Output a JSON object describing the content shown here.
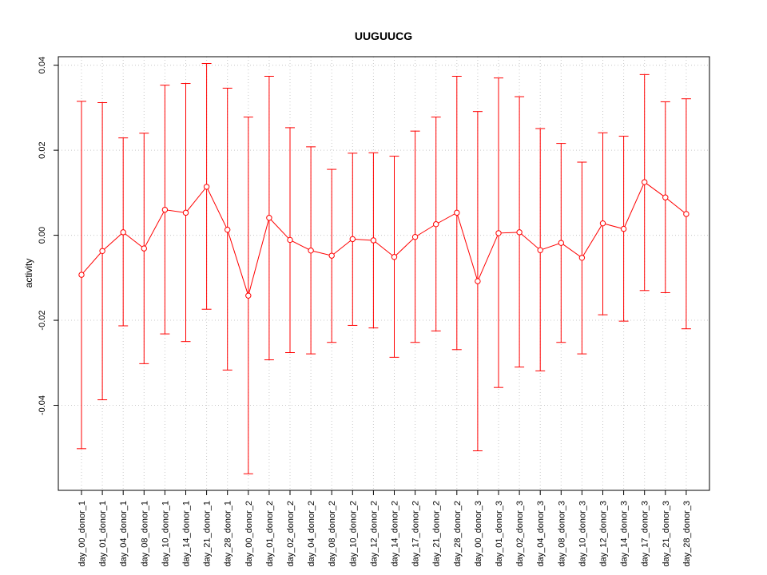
{
  "chart_data": {
    "type": "line",
    "title": "UUGUUCG",
    "xlabel": "",
    "ylabel": "activity",
    "ylim": [
      -0.06,
      0.042
    ],
    "y_ticks": [
      -0.04,
      -0.02,
      0.0,
      0.02,
      0.04
    ],
    "y_tick_labels": [
      "-0.04",
      "-0.02",
      "0.00",
      "0.02",
      "0.04"
    ],
    "grid": true,
    "error_bars": true,
    "colors": {
      "series": "#ff0000",
      "grid": "#c8c8c8",
      "axis": "#000000"
    },
    "categories": [
      "day_00_donor_1",
      "day_01_donor_1",
      "day_04_donor_1",
      "day_08_donor_1",
      "day_10_donor_1",
      "day_14_donor_1",
      "day_21_donor_1",
      "day_28_donor_1",
      "day_00_donor_2",
      "day_01_donor_2",
      "day_02_donor_2",
      "day_04_donor_2",
      "day_08_donor_2",
      "day_10_donor_2",
      "day_12_donor_2",
      "day_14_donor_2",
      "day_17_donor_2",
      "day_21_donor_2",
      "day_28_donor_2",
      "day_00_donor_3",
      "day_01_donor_3",
      "day_02_donor_3",
      "day_04_donor_3",
      "day_08_donor_3",
      "day_10_donor_3",
      "day_12_donor_3",
      "day_14_donor_3",
      "day_17_donor_3",
      "day_21_donor_3",
      "day_28_donor_3"
    ],
    "series": [
      {
        "values": [
          -0.0093,
          -0.0037,
          0.0007,
          -0.0031,
          0.006,
          0.0053,
          0.0114,
          0.0013,
          -0.0142,
          0.0041,
          -0.0011,
          -0.0036,
          -0.0048,
          -0.0009,
          -0.0012,
          -0.0051,
          -0.0004,
          0.0026,
          0.0053,
          -0.0108,
          0.0005,
          0.0007,
          -0.0035,
          -0.0018,
          -0.0053,
          0.0028,
          0.0015,
          0.0125,
          0.0089,
          0.005
        ],
        "upper": [
          0.0315,
          0.0312,
          0.0229,
          0.024,
          0.0353,
          0.0357,
          0.0404,
          0.0346,
          0.0278,
          0.0374,
          0.0253,
          0.0208,
          0.0155,
          0.0193,
          0.0194,
          0.0186,
          0.0245,
          0.0278,
          0.0374,
          0.0291,
          0.037,
          0.0326,
          0.0251,
          0.0216,
          0.0172,
          0.0241,
          0.0233,
          0.0378,
          0.0314,
          0.0321
        ],
        "lower": [
          -0.0502,
          -0.0387,
          -0.0213,
          -0.0302,
          -0.0232,
          -0.025,
          -0.0174,
          -0.0317,
          -0.0561,
          -0.0293,
          -0.0276,
          -0.0279,
          -0.0252,
          -0.0212,
          -0.0218,
          -0.0287,
          -0.0252,
          -0.0225,
          -0.0269,
          -0.0507,
          -0.0358,
          -0.031,
          -0.0319,
          -0.0252,
          -0.0279,
          -0.0187,
          -0.0202,
          -0.013,
          -0.0135,
          -0.022
        ]
      }
    ]
  }
}
